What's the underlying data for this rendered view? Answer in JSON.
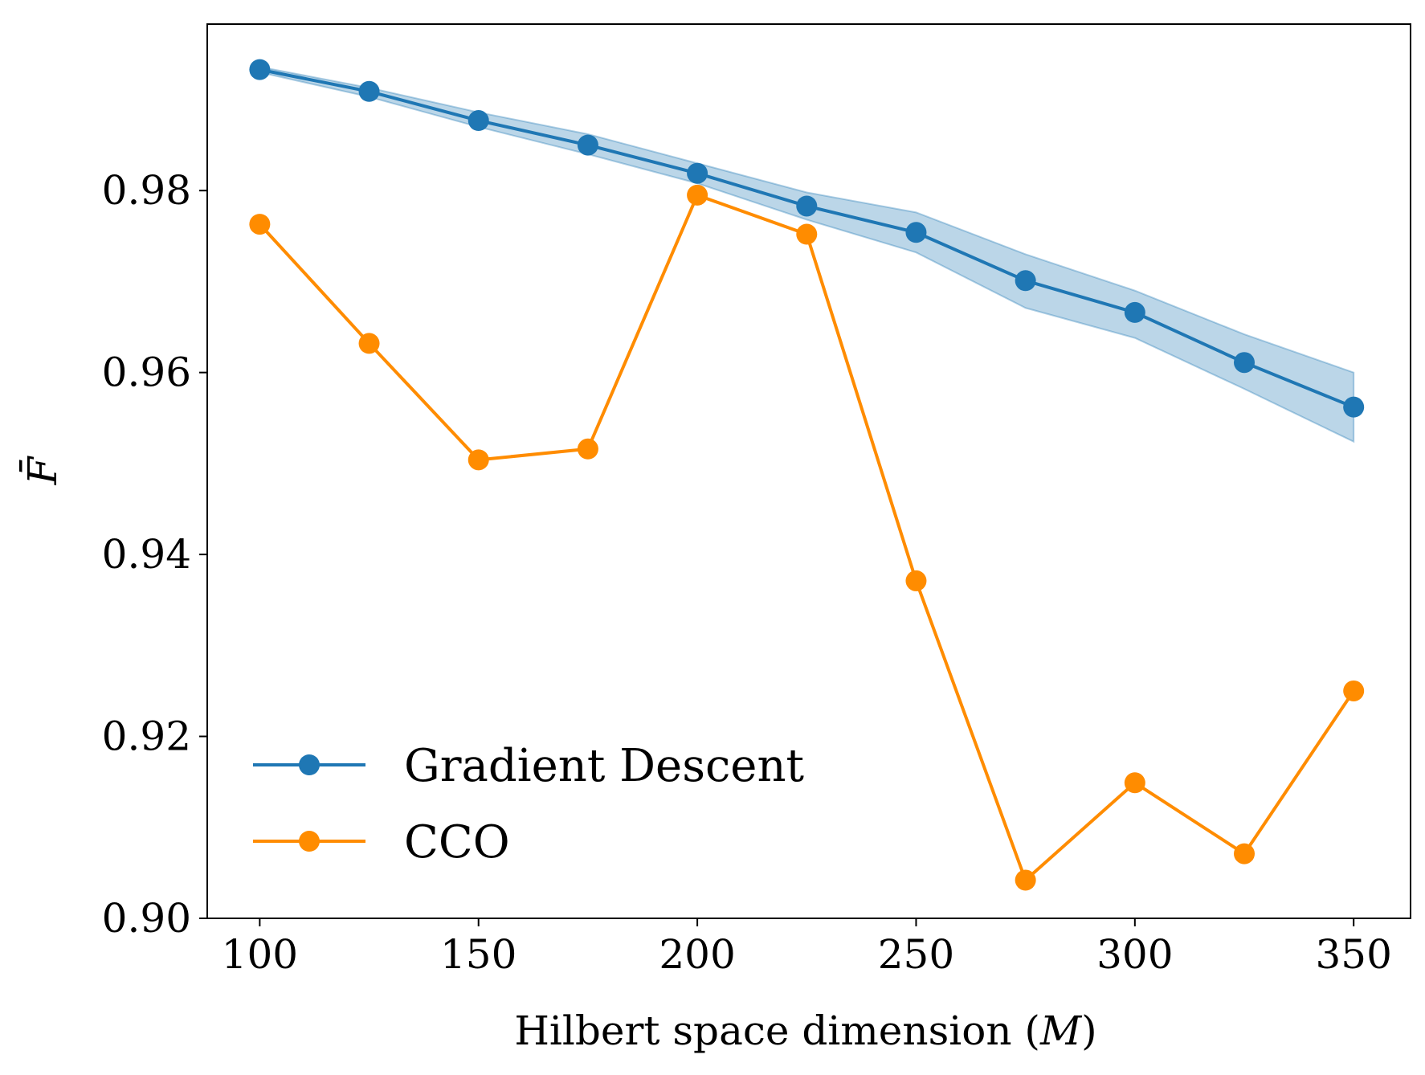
{
  "chart_data": {
    "type": "line",
    "title": "",
    "xlabel": "Hilbert space dimension",
    "xlabel_symbol": "M",
    "ylabel": "F̄",
    "x": [
      100,
      125,
      150,
      175,
      200,
      225,
      250,
      275,
      300,
      325,
      350
    ],
    "xlim": [
      88,
      363
    ],
    "ylim": [
      0.9,
      0.9983
    ],
    "xticks": [
      100,
      150,
      200,
      250,
      300,
      350
    ],
    "xtick_labels": [
      "100",
      "150",
      "200",
      "250",
      "300",
      "350"
    ],
    "yticks": [
      0.9,
      0.92,
      0.94,
      0.96,
      0.98
    ],
    "ytick_labels": [
      "0.90",
      "0.92",
      "0.94",
      "0.96",
      "0.98"
    ],
    "grid": false,
    "legend": {
      "position": "lower-left"
    },
    "series": [
      {
        "name": "Gradient Descent",
        "color": "#1f77b4",
        "values": [
          0.9933,
          0.9909,
          0.9877,
          0.985,
          0.9819,
          0.9783,
          0.9754,
          0.9701,
          0.9666,
          0.9611,
          0.9562
        ],
        "band_upper": [
          0.9936,
          0.9913,
          0.9886,
          0.9862,
          0.983,
          0.9798,
          0.9776,
          0.973,
          0.969,
          0.9642,
          0.96
        ],
        "band_lower": [
          0.993,
          0.9903,
          0.987,
          0.984,
          0.9808,
          0.9768,
          0.9732,
          0.9671,
          0.9638,
          0.9582,
          0.9524
        ],
        "band_color": "#1f77b4"
      },
      {
        "name": "CCO",
        "color": "#ff8c00",
        "values": [
          0.9763,
          0.9632,
          0.9504,
          0.9516,
          0.9795,
          0.9752,
          0.9371,
          0.9042,
          0.9149,
          0.9071,
          0.925
        ]
      }
    ]
  }
}
